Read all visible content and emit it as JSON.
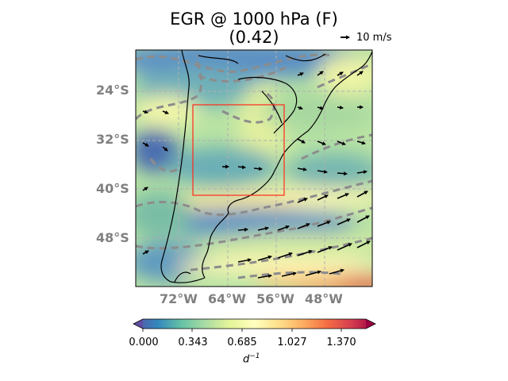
{
  "title": {
    "line1": "EGR @ 1000 hPa (F)",
    "line2": "(0.42)"
  },
  "reference_vector": {
    "label": "10 m/s"
  },
  "latitude_labels": [
    "24°S",
    "32°S",
    "40°S",
    "48°S"
  ],
  "longitude_labels": [
    "72°W",
    "64°W",
    "56°W",
    "48°W"
  ],
  "colorbar": {
    "ticks": [
      "0.000",
      "0.343",
      "0.685",
      "1.027",
      "1.370"
    ],
    "unit_prefix": "d",
    "unit_exponent": "−1",
    "colormap": [
      "#5e4fa2",
      "#3288bd",
      "#66c2a5",
      "#abdda4",
      "#e6f598",
      "#ffffbf",
      "#fee08b",
      "#fdae61",
      "#f46d43",
      "#d53e4f",
      "#9e0142"
    ]
  },
  "colors": {
    "highlight_box": "#ff2a1a",
    "contours": "#8c8c8c",
    "gridlines": "#b0b0b0",
    "coastline": "#000000"
  }
}
